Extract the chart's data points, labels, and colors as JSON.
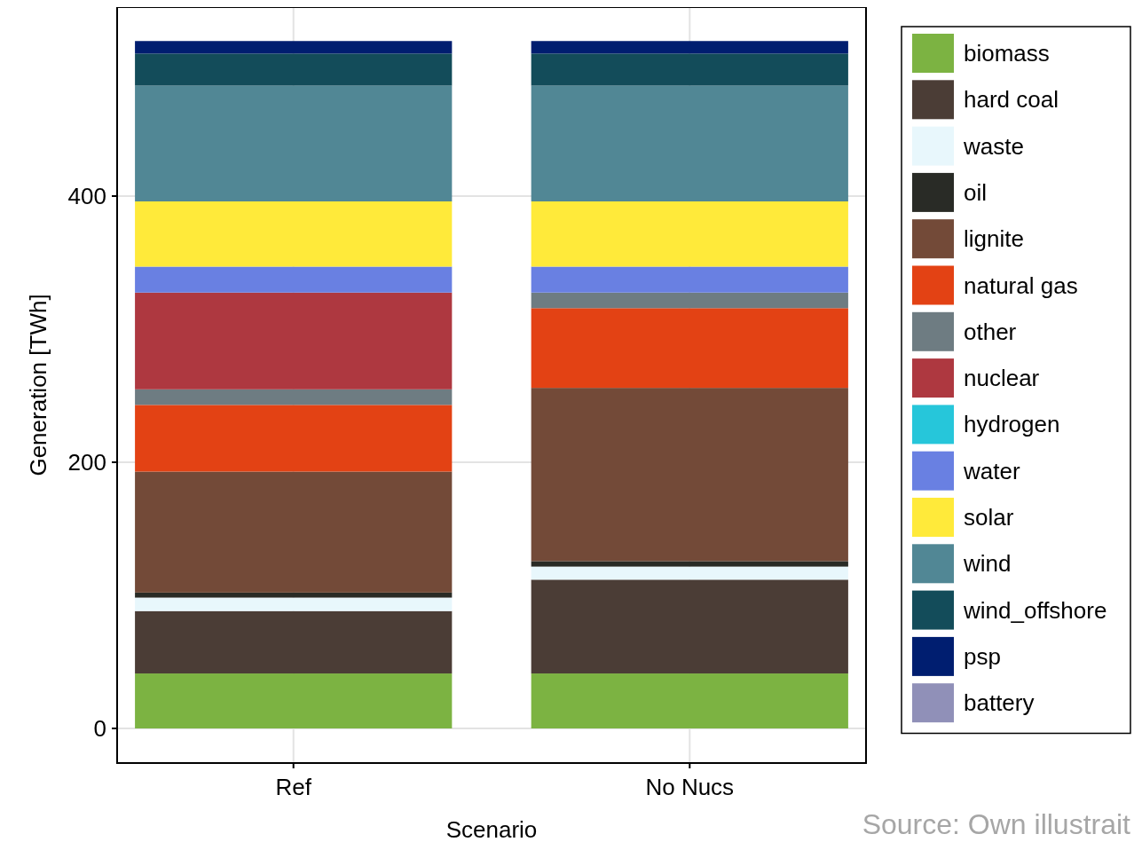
{
  "chart_data": {
    "type": "bar",
    "stacked": true,
    "xlabel": "Scenario",
    "ylabel": "Generation [TWh]",
    "categories": [
      "Ref",
      "No Nucs"
    ],
    "ylim": [
      -26,
      542
    ],
    "yticks": [
      0,
      200,
      400
    ],
    "grid": true,
    "legend": "right",
    "annotations": [
      "Source: Own illustrait"
    ],
    "series": [
      {
        "name": "biomass",
        "color": "#7cb342",
        "values": [
          41.3,
          41.3
        ]
      },
      {
        "name": "hard coal",
        "color": "#4b3d36",
        "values": [
          46.9,
          70.5
        ]
      },
      {
        "name": "waste",
        "color": "#e8f7fc",
        "values": [
          10.1,
          9.8
        ]
      },
      {
        "name": "oil",
        "color": "#292b26",
        "values": [
          3.8,
          4.1
        ]
      },
      {
        "name": "lignite",
        "color": "#734a38",
        "values": [
          90.9,
          130.2
        ]
      },
      {
        "name": "natural gas",
        "color": "#e34214",
        "values": [
          50.1,
          59.9
        ]
      },
      {
        "name": "other",
        "color": "#6e7c82",
        "values": [
          11.7,
          11.7
        ]
      },
      {
        "name": "nuclear",
        "color": "#ae3840",
        "values": [
          72.7,
          0
        ]
      },
      {
        "name": "hydrogen",
        "color": "#26c6da",
        "values": [
          0,
          0
        ]
      },
      {
        "name": "water",
        "color": "#6980e2",
        "values": [
          19.5,
          19.5
        ]
      },
      {
        "name": "solar",
        "color": "#ffea3a",
        "values": [
          49,
          49
        ]
      },
      {
        "name": "wind",
        "color": "#518795",
        "values": [
          87,
          87
        ]
      },
      {
        "name": "wind_offshore",
        "color": "#134c5a",
        "values": [
          24.1,
          24.1
        ]
      },
      {
        "name": "psp",
        "color": "#001e70",
        "values": [
          9.4,
          9.4
        ]
      },
      {
        "name": "battery",
        "color": "#9090b8",
        "values": [
          0,
          0
        ]
      }
    ]
  }
}
